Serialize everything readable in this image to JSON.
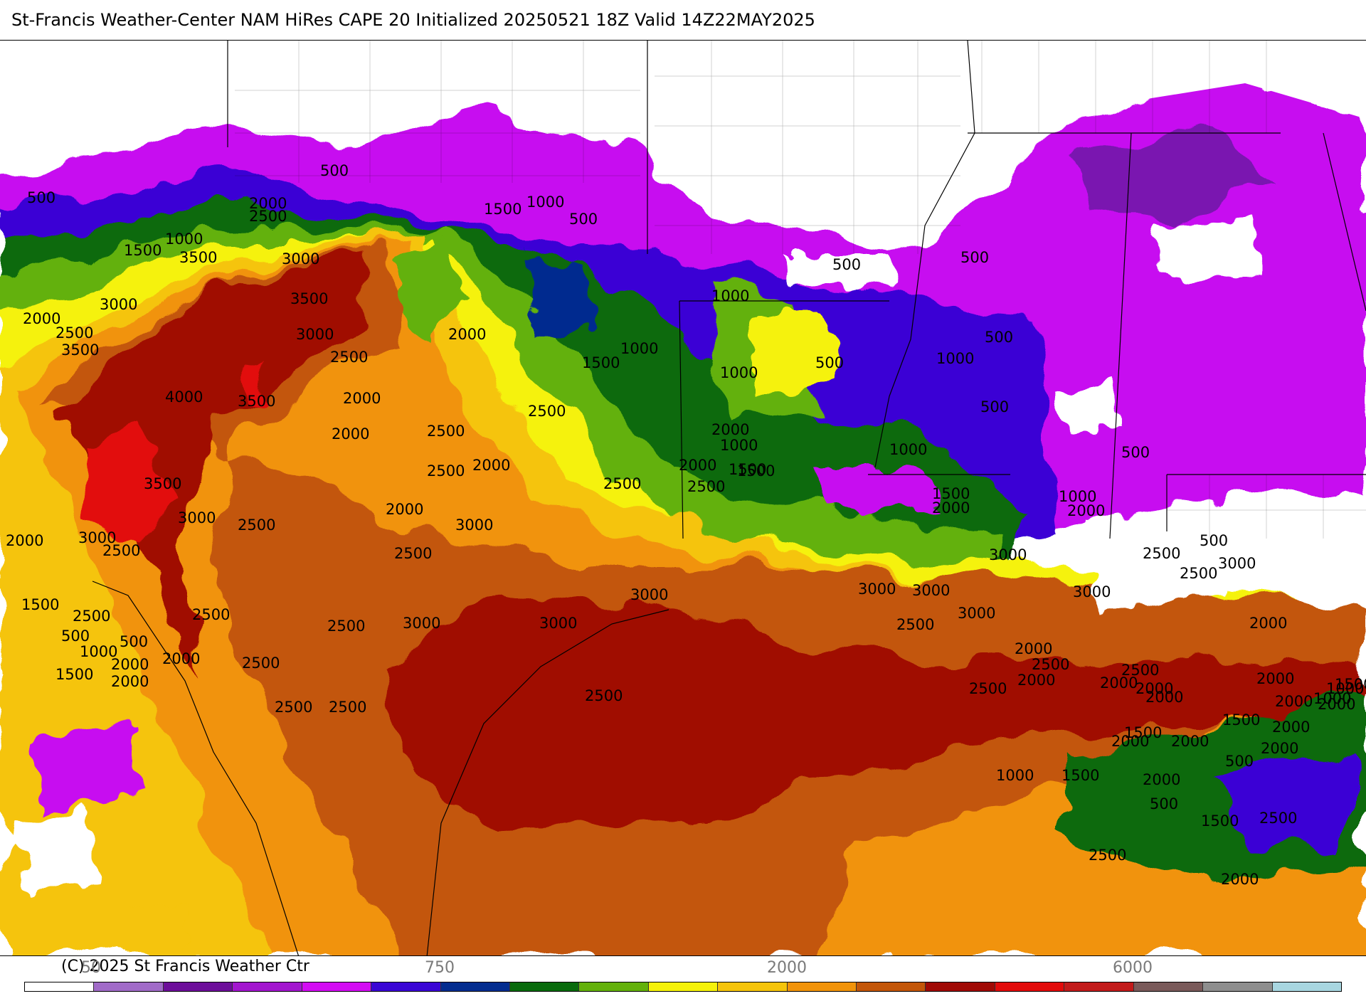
{
  "title": "St-Francis Weather-Center NAM HiRes CAPE  20 Initialized 20250521 18Z Valid 14Z22MAY2025",
  "copyright": "(C) 2025 St Francis Weather Ctr",
  "colorbar": {
    "ticks": [
      {
        "label": "50",
        "value": 50
      },
      {
        "label": "750",
        "value": 750
      },
      {
        "label": "2000",
        "value": 2000
      },
      {
        "label": "6000",
        "value": 6000
      }
    ],
    "colors": [
      "#ffffff",
      "#a16bc8",
      "#6d0e9a",
      "#a316cf",
      "#d30cf3",
      "#3a06d5",
      "#032c8f",
      "#086a0c",
      "#63b10b",
      "#f5f20a",
      "#f5c40b",
      "#f1930a",
      "#c35609",
      "#a00a05",
      "#e20b0b",
      "#c21b1b",
      "#7a5a5a",
      "#8e8e8e",
      "#a8d6e0"
    ]
  },
  "contour_labels": [
    {
      "text": "500"
    },
    {
      "text": "500"
    },
    {
      "text": "2000"
    },
    {
      "text": "2500"
    },
    {
      "text": "1500"
    },
    {
      "text": "1000"
    },
    {
      "text": "500"
    },
    {
      "text": "1000"
    },
    {
      "text": "1500"
    },
    {
      "text": "3500"
    },
    {
      "text": "3000"
    },
    {
      "text": "3000"
    },
    {
      "text": "3500"
    },
    {
      "text": "2000"
    },
    {
      "text": "2500"
    },
    {
      "text": "3500"
    },
    {
      "text": "3000"
    },
    {
      "text": "2500"
    },
    {
      "text": "4000"
    },
    {
      "text": "3500"
    },
    {
      "text": "2000"
    },
    {
      "text": "2000"
    },
    {
      "text": "2000"
    },
    {
      "text": "1500"
    },
    {
      "text": "1000"
    },
    {
      "text": "1000"
    },
    {
      "text": "1000"
    },
    {
      "text": "500"
    },
    {
      "text": "500"
    },
    {
      "text": "500"
    },
    {
      "text": "1000"
    },
    {
      "text": "500"
    },
    {
      "text": "500"
    },
    {
      "text": "1000"
    },
    {
      "text": "1000"
    },
    {
      "text": "2500"
    },
    {
      "text": "2500"
    },
    {
      "text": "2000"
    },
    {
      "text": "2000"
    },
    {
      "text": "1500"
    },
    {
      "text": "2500"
    },
    {
      "text": "2000"
    },
    {
      "text": "2500"
    },
    {
      "text": "2500"
    },
    {
      "text": "3500"
    },
    {
      "text": "3000"
    },
    {
      "text": "2500"
    },
    {
      "text": "3000"
    },
    {
      "text": "2500"
    },
    {
      "text": "2000"
    },
    {
      "text": "3000"
    },
    {
      "text": "2500"
    },
    {
      "text": "2000"
    },
    {
      "text": "1500"
    },
    {
      "text": "1500"
    },
    {
      "text": "2000"
    },
    {
      "text": "500"
    },
    {
      "text": "1000"
    },
    {
      "text": "2000"
    },
    {
      "text": "500"
    },
    {
      "text": "3000"
    },
    {
      "text": "3000"
    },
    {
      "text": "2500"
    },
    {
      "text": "3000"
    },
    {
      "text": "3000"
    },
    {
      "text": "3000"
    },
    {
      "text": "3000"
    },
    {
      "text": "3000"
    },
    {
      "text": "3000"
    },
    {
      "text": "3000"
    },
    {
      "text": "2500"
    },
    {
      "text": "2500"
    },
    {
      "text": "1500"
    },
    {
      "text": "2500"
    },
    {
      "text": "500"
    },
    {
      "text": "500"
    },
    {
      "text": "1000"
    },
    {
      "text": "2000"
    },
    {
      "text": "1500"
    },
    {
      "text": "2000"
    },
    {
      "text": "2000"
    },
    {
      "text": "2500"
    },
    {
      "text": "2500"
    },
    {
      "text": "2500"
    },
    {
      "text": "2500"
    },
    {
      "text": "2500"
    },
    {
      "text": "2000"
    },
    {
      "text": "2500"
    },
    {
      "text": "2000"
    },
    {
      "text": "2500"
    },
    {
      "text": "2000"
    },
    {
      "text": "2000"
    },
    {
      "text": "2500"
    },
    {
      "text": "2500"
    },
    {
      "text": "2000"
    },
    {
      "text": "2000"
    },
    {
      "text": "2000"
    },
    {
      "text": "1000"
    },
    {
      "text": "1500"
    },
    {
      "text": "2000"
    },
    {
      "text": "2000"
    },
    {
      "text": "2000"
    },
    {
      "text": "1500"
    },
    {
      "text": "1500"
    },
    {
      "text": "2000"
    },
    {
      "text": "2000"
    },
    {
      "text": "2000"
    },
    {
      "text": "1000"
    },
    {
      "text": "500"
    },
    {
      "text": "1000"
    },
    {
      "text": "1500"
    },
    {
      "text": "500"
    },
    {
      "text": "2000"
    },
    {
      "text": "1500"
    },
    {
      "text": "2500"
    },
    {
      "text": "2500"
    },
    {
      "text": "2000"
    },
    {
      "text": "2000"
    },
    {
      "text": "2500"
    },
    {
      "text": "2500"
    },
    {
      "text": "2000"
    },
    {
      "text": "2000"
    }
  ]
}
